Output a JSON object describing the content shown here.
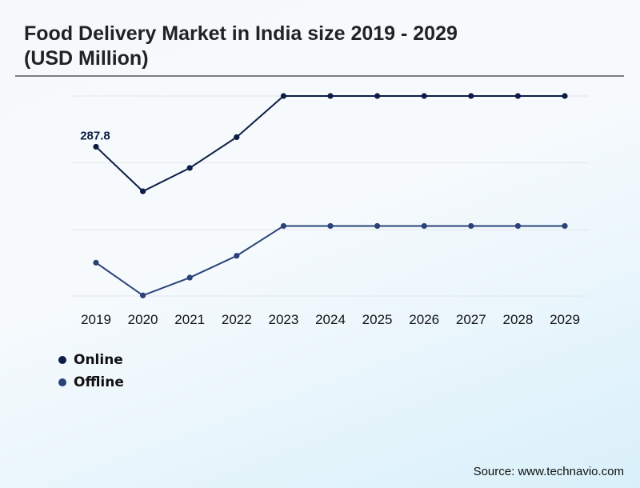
{
  "header": {
    "title": "Food Delivery Market in India size 2019 - 2029 (USD Million)"
  },
  "footer": {
    "source": "Source: www.technavio.com"
  },
  "colors": {
    "online": "#0c1d45",
    "offline": "#2a4278",
    "grid": "#e3e6ea",
    "axis_text": "#111111"
  },
  "chart_data": {
    "type": "line",
    "title": "Food Delivery Market in India size 2019 - 2029 (USD Million)",
    "xlabel": "",
    "ylabel": "",
    "grid": true,
    "legend_position": "bottom-left",
    "x": [
      "2019",
      "2020",
      "2021",
      "2022",
      "2023",
      "2024",
      "2025",
      "2026",
      "2027",
      "2028",
      "2029"
    ],
    "series": [
      {
        "name": "Online",
        "values": [
          287.8,
          133,
          214,
          321,
          464,
          464,
          464,
          464,
          464,
          464,
          464
        ],
        "panel": "top",
        "ylim": [
          0,
          464
        ],
        "labels": {
          "0": "287.8"
        }
      },
      {
        "name": "Offline",
        "values": [
          58,
          1,
          32,
          70,
          122,
          122,
          122,
          122,
          122,
          122,
          122
        ],
        "panel": "bottom",
        "ylim": [
          0,
          232
        ],
        "labels": {}
      }
    ]
  }
}
